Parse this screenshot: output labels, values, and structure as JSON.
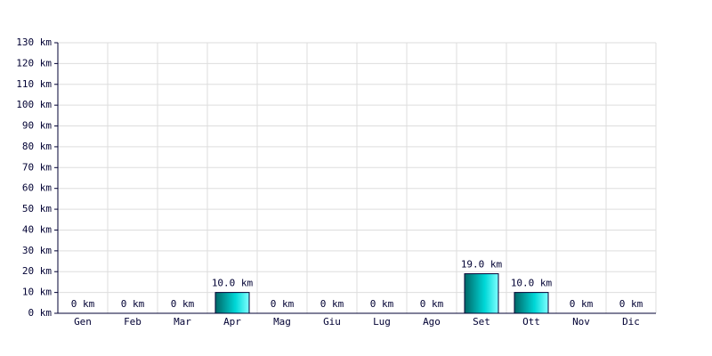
{
  "chart_data": {
    "type": "bar",
    "categories": [
      "Gen",
      "Feb",
      "Mar",
      "Apr",
      "Mag",
      "Giu",
      "Lug",
      "Ago",
      "Set",
      "Ott",
      "Nov",
      "Dic"
    ],
    "values": [
      0,
      0,
      0,
      10,
      0,
      0,
      0,
      0,
      19,
      10,
      0,
      0
    ],
    "value_labels": [
      "0 km",
      "0 km",
      "0 km",
      "10.0 km",
      "0 km",
      "0 km",
      "0 km",
      "0 km",
      "19.0 km",
      "10.0 km",
      "0 km",
      "0 km"
    ],
    "color": "#00d8d8",
    "ylim": [
      0,
      130
    ],
    "yticks": [
      {
        "value": 0,
        "label": "0 km"
      },
      {
        "value": 10,
        "label": "10 km"
      },
      {
        "value": 20,
        "label": "20 km"
      },
      {
        "value": 30,
        "label": "30 km"
      },
      {
        "value": 40,
        "label": "40 km"
      },
      {
        "value": 50,
        "label": "50 km"
      },
      {
        "value": 60,
        "label": "60 km"
      },
      {
        "value": 70,
        "label": "70 km"
      },
      {
        "value": 80,
        "label": "80 km"
      },
      {
        "value": 90,
        "label": "90 km"
      },
      {
        "value": 100,
        "label": "100 km"
      },
      {
        "value": 110,
        "label": "110 km"
      },
      {
        "value": 120,
        "label": "120 km"
      },
      {
        "value": 130,
        "label": "130 km"
      }
    ],
    "grid": true
  }
}
